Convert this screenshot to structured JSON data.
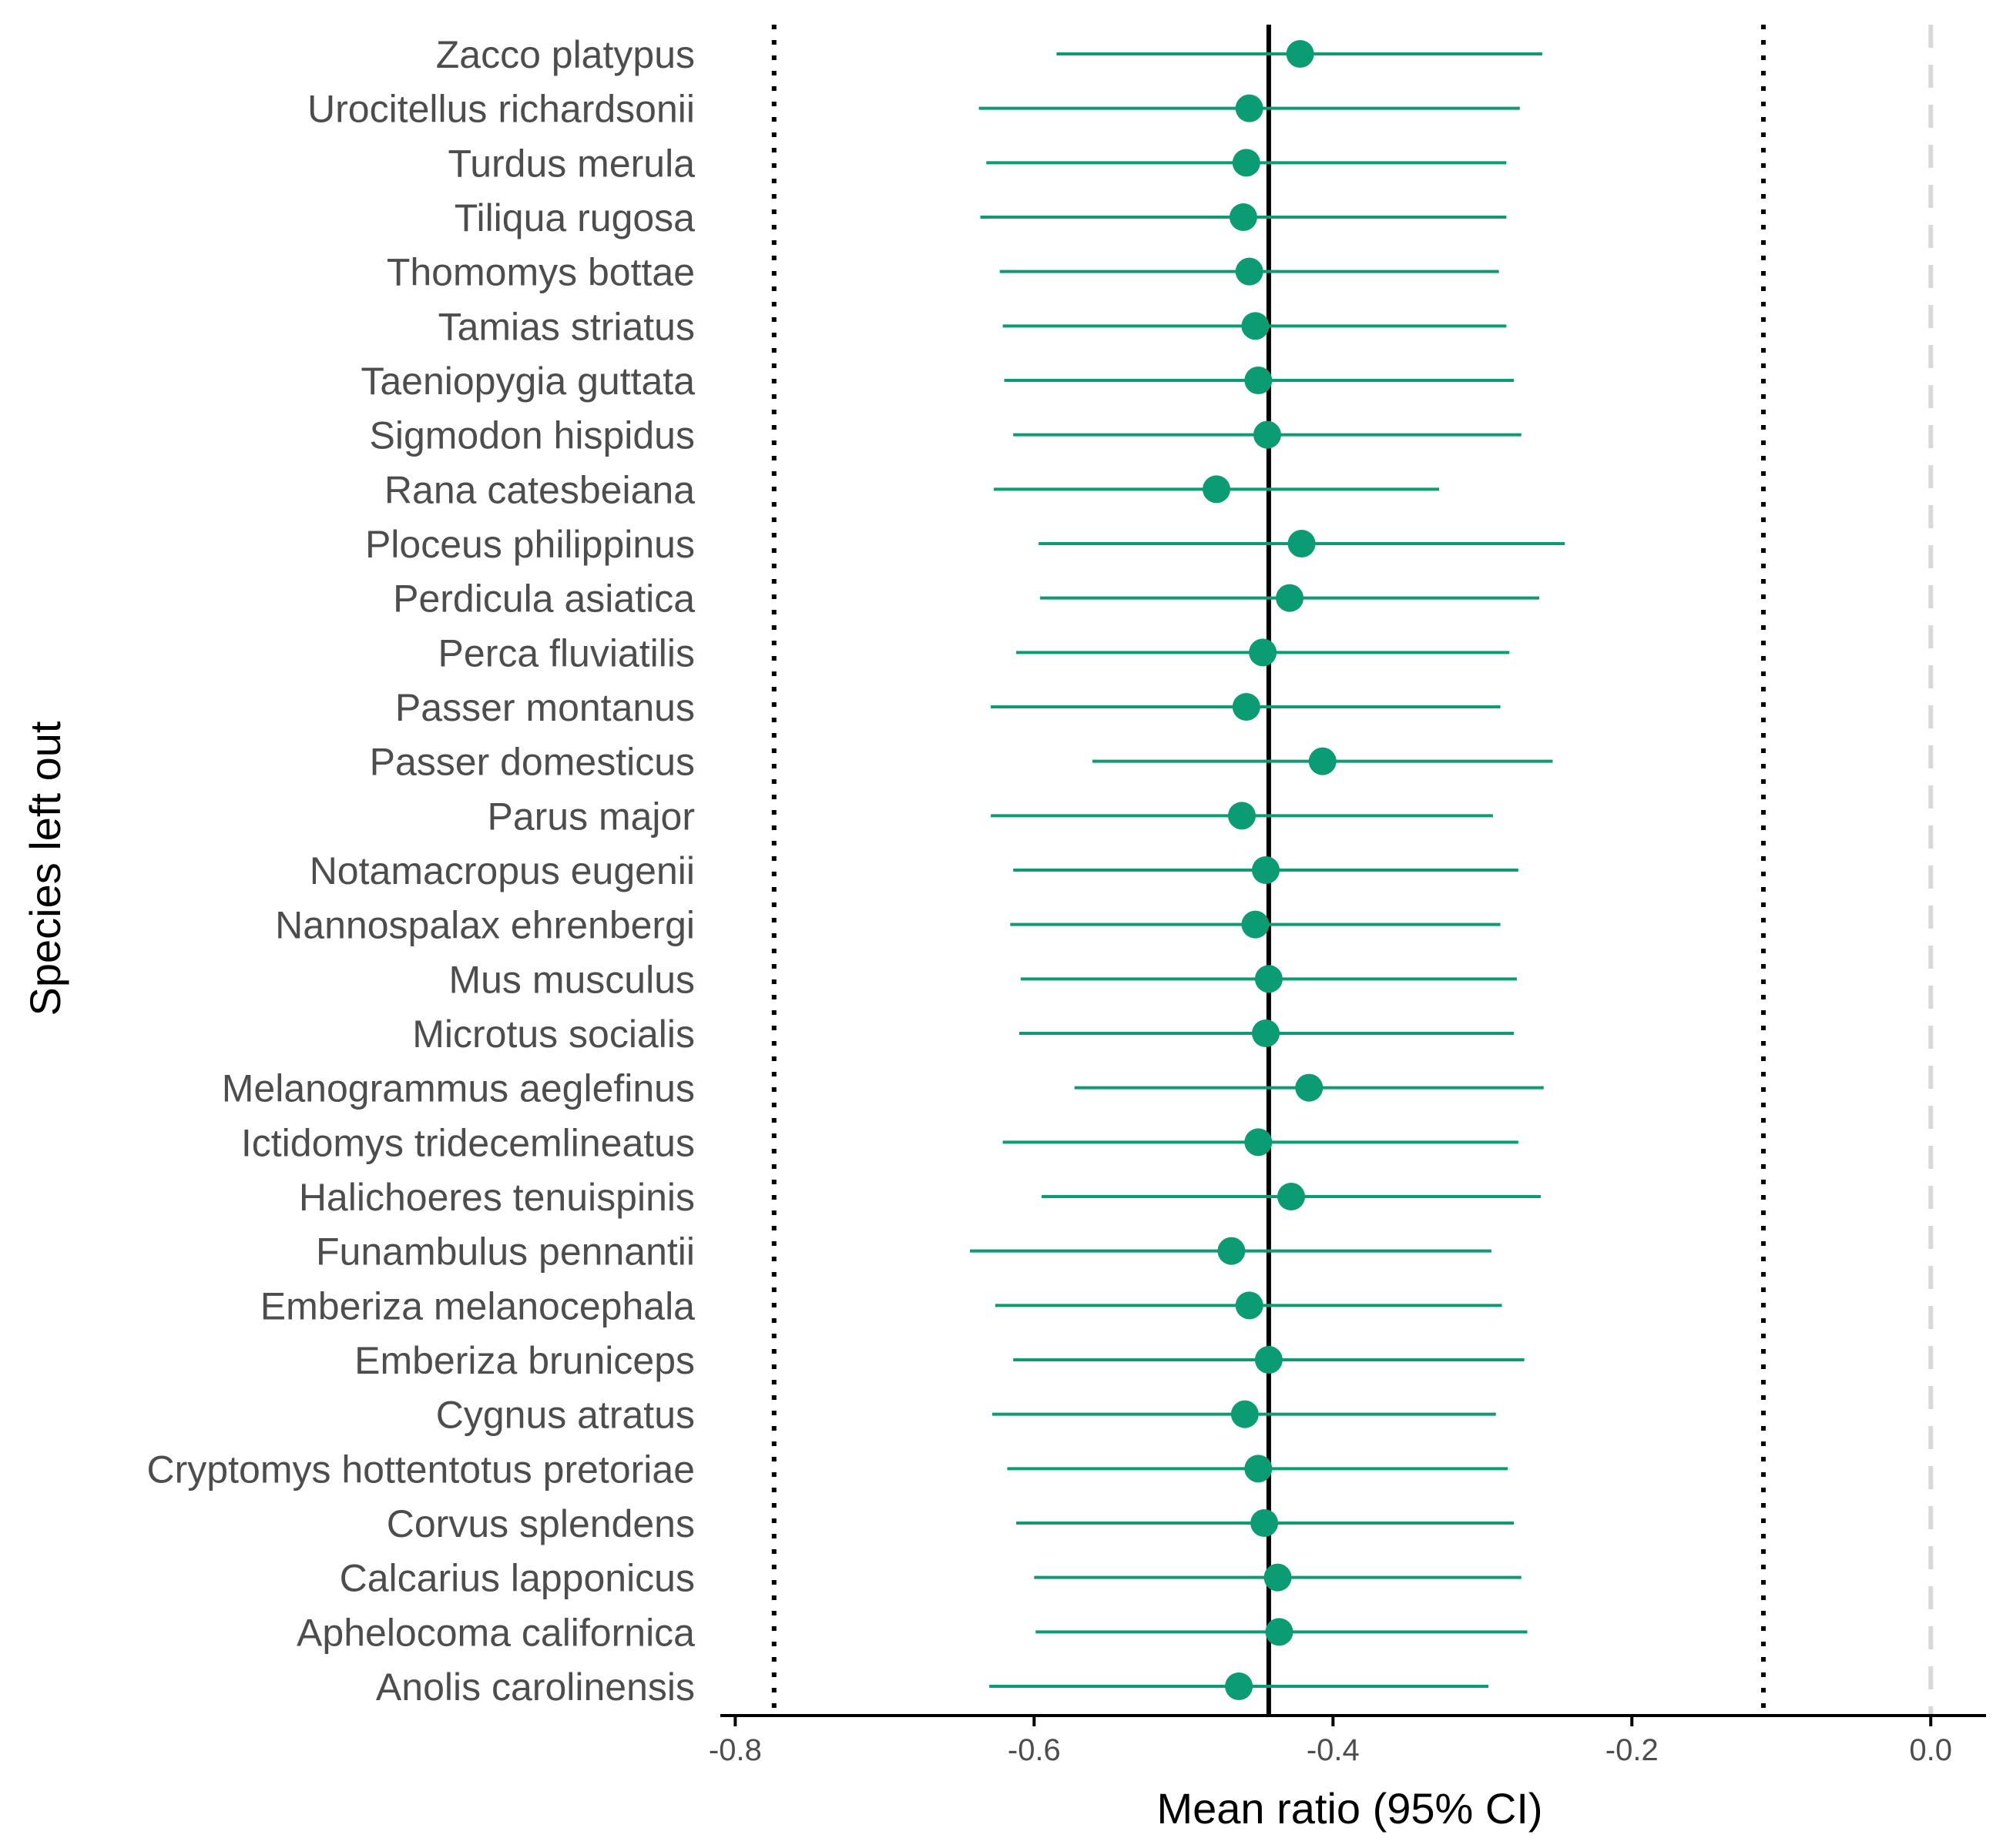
{
  "chart_data": {
    "type": "forest-plot",
    "xlabel": "Mean ratio (95% CI)",
    "ylabel": "Species left out",
    "xlim": [
      -0.81,
      0.037
    ],
    "x_ticks": [
      -0.8,
      -0.6,
      -0.4,
      -0.2,
      0.0
    ],
    "x_tick_labels": [
      "-0.8",
      "-0.6",
      "-0.4",
      "-0.2",
      "0.0"
    ],
    "overall_mean": -0.443,
    "overall_ci": [
      -0.774,
      -0.112
    ],
    "null_value": 0.0,
    "grid": false,
    "legend": "none",
    "colors": {
      "point": "#0c9c74",
      "overall_line": "#000000",
      "ci_line": "#000000",
      "null_line": "#d9d9d9",
      "axis": "#000000",
      "tick_text": "#4d4d4d"
    },
    "rows": [
      {
        "species": "Zacco platypus",
        "mean": -0.422,
        "lower": -0.585,
        "upper": -0.26
      },
      {
        "species": "Urocitellus richardsonii",
        "mean": -0.456,
        "lower": -0.637,
        "upper": -0.275
      },
      {
        "species": "Turdus merula",
        "mean": -0.458,
        "lower": -0.632,
        "upper": -0.284
      },
      {
        "species": "Tiliqua rugosa",
        "mean": -0.46,
        "lower": -0.636,
        "upper": -0.284
      },
      {
        "species": "Thomomys bottae",
        "mean": -0.456,
        "lower": -0.623,
        "upper": -0.289
      },
      {
        "species": "Tamias striatus",
        "mean": -0.452,
        "lower": -0.621,
        "upper": -0.284
      },
      {
        "species": "Taeniopygia guttata",
        "mean": -0.45,
        "lower": -0.62,
        "upper": -0.279
      },
      {
        "species": "Sigmodon hispidus",
        "mean": -0.444,
        "lower": -0.614,
        "upper": -0.274
      },
      {
        "species": "Rana catesbeiana",
        "mean": -0.478,
        "lower": -0.627,
        "upper": -0.329
      },
      {
        "species": "Ploceus philippinus",
        "mean": -0.421,
        "lower": -0.597,
        "upper": -0.245
      },
      {
        "species": "Perdicula asiatica",
        "mean": -0.429,
        "lower": -0.596,
        "upper": -0.262
      },
      {
        "species": "Perca fluviatilis",
        "mean": -0.447,
        "lower": -0.612,
        "upper": -0.282
      },
      {
        "species": "Passer montanus",
        "mean": -0.458,
        "lower": -0.629,
        "upper": -0.288
      },
      {
        "species": "Passer domesticus",
        "mean": -0.407,
        "lower": -0.561,
        "upper": -0.253
      },
      {
        "species": "Parus major",
        "mean": -0.461,
        "lower": -0.629,
        "upper": -0.293
      },
      {
        "species": "Notamacropus eugenii",
        "mean": -0.445,
        "lower": -0.614,
        "upper": -0.276
      },
      {
        "species": "Nannospalax ehrenbergi",
        "mean": -0.452,
        "lower": -0.616,
        "upper": -0.288
      },
      {
        "species": "Mus musculus",
        "mean": -0.443,
        "lower": -0.609,
        "upper": -0.277
      },
      {
        "species": "Microtus socialis",
        "mean": -0.445,
        "lower": -0.61,
        "upper": -0.279
      },
      {
        "species": "Melanogrammus aeglefinus",
        "mean": -0.416,
        "lower": -0.573,
        "upper": -0.259
      },
      {
        "species": "Ictidomys tridecemlineatus",
        "mean": -0.45,
        "lower": -0.621,
        "upper": -0.276
      },
      {
        "species": "Halichoeres tenuispinis",
        "mean": -0.428,
        "lower": -0.595,
        "upper": -0.261
      },
      {
        "species": "Funambulus pennantii",
        "mean": -0.468,
        "lower": -0.643,
        "upper": -0.294
      },
      {
        "species": "Emberiza melanocephala",
        "mean": -0.456,
        "lower": -0.626,
        "upper": -0.287
      },
      {
        "species": "Emberiza bruniceps",
        "mean": -0.443,
        "lower": -0.614,
        "upper": -0.272
      },
      {
        "species": "Cygnus atratus",
        "mean": -0.459,
        "lower": -0.628,
        "upper": -0.291
      },
      {
        "species": "Cryptomys hottentotus pretoriae",
        "mean": -0.45,
        "lower": -0.618,
        "upper": -0.283
      },
      {
        "species": "Corvus splendens",
        "mean": -0.446,
        "lower": -0.612,
        "upper": -0.279
      },
      {
        "species": "Calcarius lapponicus",
        "mean": -0.437,
        "lower": -0.6,
        "upper": -0.274
      },
      {
        "species": "Aphelocoma californica",
        "mean": -0.436,
        "lower": -0.599,
        "upper": -0.27
      },
      {
        "species": "Anolis carolinensis",
        "mean": -0.463,
        "lower": -0.63,
        "upper": -0.296
      }
    ]
  }
}
